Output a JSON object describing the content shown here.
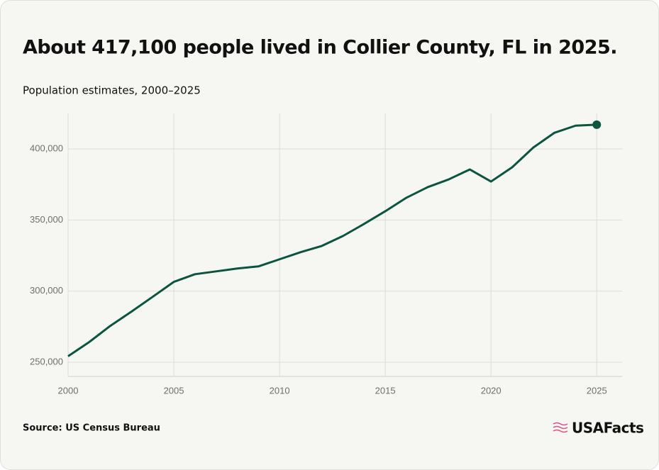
{
  "chart_data": {
    "type": "line",
    "title": "About 417,100 people lived in Collier County, FL in 2025.",
    "subtitle": "Population estimates, 2000–2025",
    "source": "Source: US Census Bureau",
    "logo": "USAFacts",
    "x": [
      2000,
      2001,
      2002,
      2003,
      2004,
      2005,
      2006,
      2007,
      2008,
      2009,
      2010,
      2011,
      2012,
      2013,
      2014,
      2015,
      2016,
      2017,
      2018,
      2019,
      2020,
      2021,
      2022,
      2023,
      2024,
      2025
    ],
    "values": [
      254200,
      264200,
      275600,
      285600,
      296000,
      306500,
      311900,
      313900,
      315900,
      317400,
      322400,
      327400,
      331800,
      338800,
      347300,
      356200,
      365700,
      373100,
      378600,
      385600,
      377100,
      387100,
      401000,
      411400,
      416400,
      417100
    ],
    "color": "#0b5540",
    "xlim": [
      2000,
      2026.2
    ],
    "xticks": [
      2000,
      2005,
      2010,
      2015,
      2020,
      2025
    ],
    "ylim": [
      240000,
      425000
    ],
    "yticks": [
      {
        "value": 250000,
        "label": "250,000"
      },
      {
        "value": 300000,
        "label": "300,000"
      },
      {
        "value": 350000,
        "label": "350,000"
      },
      {
        "value": 400000,
        "label": "400,000"
      }
    ],
    "grid": true
  }
}
